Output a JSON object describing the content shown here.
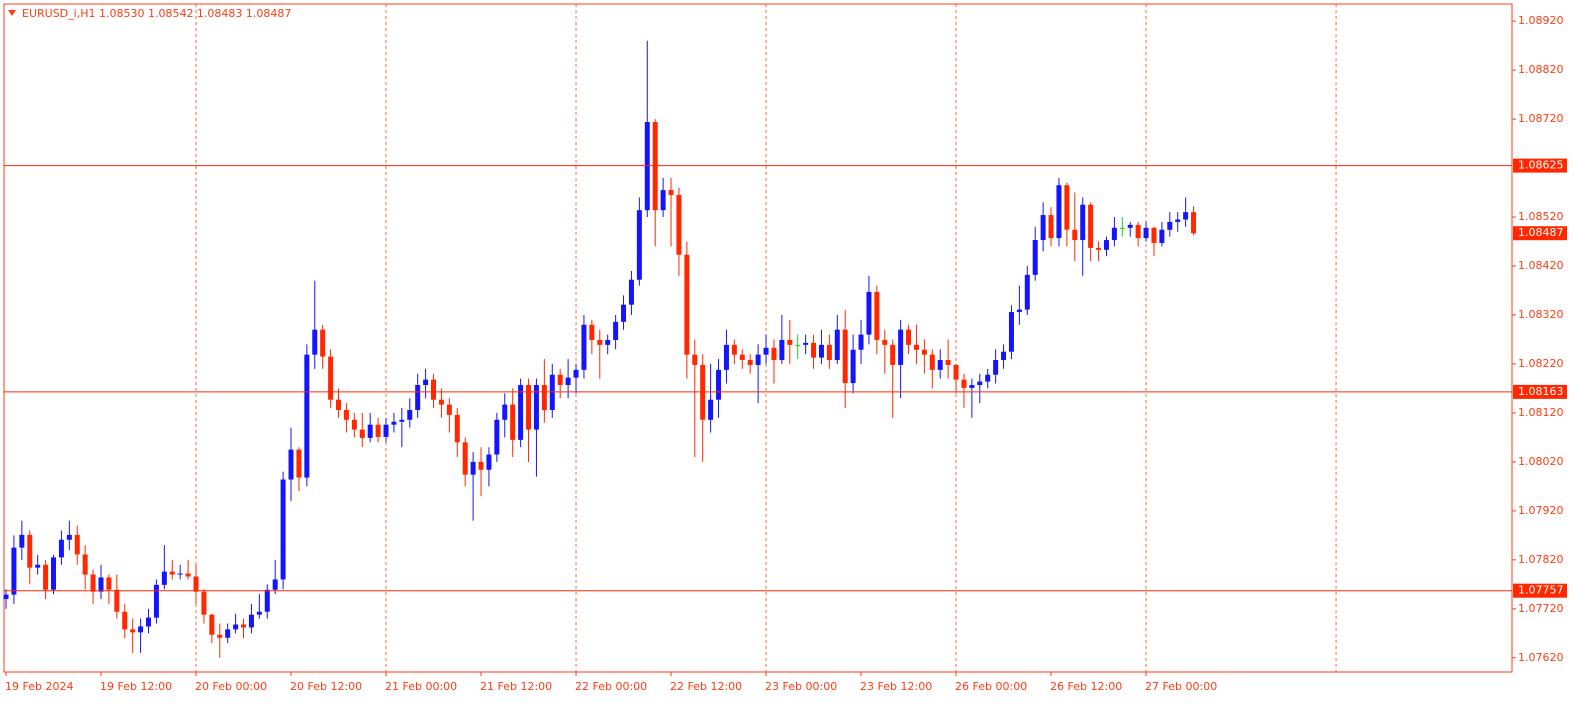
{
  "chart_data": {
    "type": "candlestick",
    "title": "EURUSD_i,H1  1.08530 1.08542 1.08483 1.08487",
    "up_color": "#1414ff",
    "down_color": "#ff2800",
    "doji_color": "#22cc22",
    "axis_color": "#ff3c14",
    "grid_color": "#ff6a32",
    "grid": true,
    "categories": [
      "19 Feb 2024",
      null,
      null,
      null,
      null,
      null,
      null,
      null,
      null,
      null,
      null,
      null,
      "19 Feb 12:00",
      null,
      null,
      null,
      null,
      null,
      null,
      null,
      null,
      null,
      null,
      null,
      "20 Feb 00:00",
      null,
      null,
      null,
      null,
      null,
      null,
      null,
      null,
      null,
      null,
      null,
      "20 Feb 12:00",
      null,
      null,
      null,
      null,
      null,
      null,
      null,
      null,
      null,
      null,
      null,
      "21 Feb 00:00",
      null,
      null,
      null,
      null,
      null,
      null,
      null,
      null,
      null,
      null,
      null,
      "21 Feb 12:00",
      null,
      null,
      null,
      null,
      null,
      null,
      null,
      null,
      null,
      null,
      null,
      "22 Feb 00:00",
      null,
      null,
      null,
      null,
      null,
      null,
      null,
      null,
      null,
      null,
      null,
      "22 Feb 12:00",
      null,
      null,
      null,
      null,
      null,
      null,
      null,
      null,
      null,
      null,
      null,
      "23 Feb 00:00",
      null,
      null,
      null,
      null,
      null,
      null,
      null,
      null,
      null,
      null,
      null,
      "23 Feb 12:00",
      null,
      null,
      null,
      null,
      null,
      null,
      null,
      null,
      null,
      null,
      null,
      "26 Feb 00:00",
      null,
      null,
      null,
      null,
      null,
      null,
      null,
      null,
      null,
      null,
      null,
      "26 Feb 12:00",
      null,
      null,
      null,
      null,
      null,
      null,
      null,
      null,
      null,
      null,
      null,
      "27 Feb 00:00",
      null,
      null,
      null,
      null,
      null,
      null
    ],
    "open": [
      1.0774,
      1.07749,
      1.07845,
      1.07871,
      1.07804,
      1.0781,
      1.07759,
      1.07825,
      1.07861,
      1.07871,
      1.07831,
      1.0779,
      1.07755,
      1.07784,
      1.07759,
      1.07714,
      1.07678,
      1.07672,
      1.07684,
      1.07702,
      1.07769,
      1.07796,
      1.0779,
      1.07792,
      1.07786,
      1.07755,
      1.07708,
      1.07667,
      1.07661,
      1.07678,
      1.07688,
      1.07682,
      1.07708,
      1.07714,
      1.07759,
      1.0778,
      1.07984,
      1.08045,
      1.07988,
      1.08239,
      1.0829,
      1.08235,
      1.08147,
      1.08126,
      1.08106,
      1.08086,
      1.08069,
      1.08096,
      1.08071,
      1.08096,
      1.08102,
      1.08106,
      1.08126,
      1.08177,
      1.08188,
      1.08147,
      1.08137,
      1.08116,
      1.0806,
      1.07994,
      1.0802,
      1.08004,
      1.08035,
      1.08106,
      1.08137,
      1.08065,
      1.08177,
      1.08086,
      1.08177,
      1.08126,
      1.08198,
      1.08177,
      1.08192,
      1.08208,
      1.083,
      1.08269,
      1.08259,
      1.08269,
      1.08306,
      1.08341,
      1.08392,
      1.08534,
      1.08714,
      1.08534,
      1.08575,
      1.08565,
      1.08443,
      1.08239,
      1.08218,
      1.08106,
      1.08147,
      1.08208,
      1.08259,
      1.08239,
      1.08228,
      1.08218,
      1.08239,
      1.08253,
      1.08228,
      1.08269,
      1.08259,
      1.08259,
      1.08263,
      1.08233,
      1.08259,
      1.08228,
      1.0829,
      1.08181,
      1.08249,
      1.0828,
      1.08367,
      1.08269,
      1.08259,
      1.08218,
      1.0829,
      1.08259,
      1.08249,
      1.08239,
      1.08208,
      1.08228,
      1.08218,
      1.08188,
      1.08171,
      1.08177,
      1.08184,
      1.08198,
      1.08228,
      1.08245,
      1.08326,
      1.08331,
      1.08402,
      1.08473,
      1.08524,
      1.08477,
      1.08585,
      1.08494,
      1.08473,
      1.08545,
      1.08457,
      1.08453,
      1.08473,
      1.08498,
      1.08498,
      1.08504,
      1.08477,
      1.08498,
      1.08467,
      1.08494,
      1.0851,
      1.08515,
      1.0853
    ],
    "high": [
      1.0776,
      1.0787,
      1.079,
      1.0788,
      1.0783,
      1.0782,
      1.0783,
      1.0788,
      1.079,
      1.0789,
      1.0785,
      1.078,
      1.0781,
      1.0779,
      1.0779,
      1.0773,
      1.077,
      1.077,
      1.0772,
      1.0778,
      1.0785,
      1.0782,
      1.0781,
      1.0782,
      1.0781,
      1.0776,
      1.0771,
      1.0769,
      1.0769,
      1.0771,
      1.077,
      1.0773,
      1.0775,
      1.0777,
      1.0782,
      1.08,
      1.0809,
      1.0805,
      1.0826,
      1.0839,
      1.083,
      1.0825,
      1.0817,
      1.0814,
      1.0812,
      1.0812,
      1.0812,
      1.0811,
      1.0811,
      1.0812,
      1.0813,
      1.0815,
      1.082,
      1.0821,
      1.082,
      1.0817,
      1.0815,
      1.0813,
      1.0807,
      1.0804,
      1.0805,
      1.0805,
      1.0812,
      1.0816,
      1.0817,
      1.0819,
      1.0819,
      1.0819,
      1.0823,
      1.0822,
      1.0821,
      1.0823,
      1.0822,
      1.0832,
      1.0831,
      1.0829,
      1.0828,
      1.0832,
      1.0836,
      1.0841,
      1.0856,
      1.0888,
      1.0872,
      1.086,
      1.086,
      1.0858,
      1.0847,
      1.0827,
      1.0824,
      1.0822,
      1.0823,
      1.0829,
      1.0827,
      1.0825,
      1.0824,
      1.0826,
      1.0828,
      1.0827,
      1.0832,
      1.0831,
      1.0828,
      1.0828,
      1.0828,
      1.0829,
      1.0828,
      1.0832,
      1.0833,
      1.0828,
      1.0831,
      1.084,
      1.0838,
      1.0829,
      1.0827,
      1.0831,
      1.083,
      1.083,
      1.0827,
      1.0825,
      1.0825,
      1.0827,
      1.0822,
      1.082,
      1.0819,
      1.082,
      1.0821,
      1.0825,
      1.0826,
      1.0834,
      1.0838,
      1.0842,
      1.085,
      1.0855,
      1.0854,
      1.086,
      1.0859,
      1.0857,
      1.0856,
      1.0855,
      1.0847,
      1.0848,
      1.0852,
      1.0852,
      1.0851,
      1.0851,
      1.0851,
      1.085,
      1.0851,
      1.0853,
      1.0853,
      1.0856,
      1.08542
    ],
    "low": [
      1.0772,
      1.0773,
      1.0782,
      1.0777,
      1.0779,
      1.0774,
      1.0775,
      1.0781,
      1.0784,
      1.0781,
      1.0776,
      1.0773,
      1.0774,
      1.0773,
      1.077,
      1.0766,
      1.0763,
      1.0763,
      1.0767,
      1.0769,
      1.0776,
      1.0778,
      1.0778,
      1.0778,
      1.0773,
      1.0769,
      1.0765,
      1.0762,
      1.0765,
      1.0767,
      1.0766,
      1.0767,
      1.077,
      1.077,
      1.0775,
      1.0776,
      1.0794,
      1.0796,
      1.0797,
      1.0821,
      1.0821,
      1.0813,
      1.0811,
      1.0808,
      1.0807,
      1.0805,
      1.0806,
      1.0806,
      1.0806,
      1.0808,
      1.0805,
      1.0809,
      1.0811,
      1.0815,
      1.0813,
      1.0811,
      1.0808,
      1.0803,
      1.0797,
      1.079,
      1.0795,
      1.0797,
      1.0802,
      1.0807,
      1.0803,
      1.0805,
      1.0802,
      1.0799,
      1.081,
      1.0811,
      1.0815,
      1.0815,
      1.0816,
      1.0819,
      1.0824,
      1.0819,
      1.0824,
      1.0825,
      1.0829,
      1.0832,
      1.0838,
      1.0852,
      1.0846,
      1.0852,
      1.0846,
      1.084,
      1.0819,
      1.0803,
      1.0802,
      1.0808,
      1.0811,
      1.0818,
      1.0822,
      1.0821,
      1.082,
      1.0814,
      1.0822,
      1.0818,
      1.0822,
      1.0822,
      1.0823,
      1.0824,
      1.0821,
      1.0822,
      1.0821,
      1.0822,
      1.0813,
      1.0816,
      1.0822,
      1.0826,
      1.0824,
      1.082,
      1.0811,
      1.0815,
      1.0824,
      1.0822,
      1.082,
      1.0817,
      1.0819,
      1.0819,
      1.0816,
      1.0813,
      1.0811,
      1.0814,
      1.0817,
      1.0818,
      1.0821,
      1.0823,
      1.083,
      1.0832,
      1.0839,
      1.0845,
      1.0846,
      1.0846,
      1.0846,
      1.0843,
      1.084,
      1.0843,
      1.0843,
      1.0844,
      1.0846,
      1.0848,
      1.0848,
      1.0846,
      1.0847,
      1.0844,
      1.0846,
      1.0848,
      1.0849,
      1.085,
      1.08483
    ],
    "close": [
      1.07749,
      1.07845,
      1.07871,
      1.07804,
      1.0781,
      1.07759,
      1.07825,
      1.07861,
      1.07871,
      1.07831,
      1.0779,
      1.07755,
      1.07784,
      1.07759,
      1.07714,
      1.07678,
      1.07672,
      1.07684,
      1.07702,
      1.07769,
      1.07796,
      1.0779,
      1.07792,
      1.07786,
      1.07755,
      1.07708,
      1.07667,
      1.07661,
      1.07678,
      1.07688,
      1.07682,
      1.07708,
      1.07714,
      1.07759,
      1.0778,
      1.07984,
      1.08045,
      1.07988,
      1.08239,
      1.0829,
      1.08235,
      1.08147,
      1.08126,
      1.08106,
      1.08086,
      1.08069,
      1.08096,
      1.08071,
      1.08096,
      1.08102,
      1.08106,
      1.08126,
      1.08177,
      1.08188,
      1.08147,
      1.08137,
      1.08116,
      1.0806,
      1.07994,
      1.0802,
      1.08004,
      1.08035,
      1.08106,
      1.08137,
      1.08065,
      1.08177,
      1.08086,
      1.08177,
      1.08126,
      1.08198,
      1.08177,
      1.08192,
      1.08208,
      1.083,
      1.08269,
      1.08259,
      1.08269,
      1.08306,
      1.08341,
      1.08392,
      1.08534,
      1.08714,
      1.08534,
      1.08575,
      1.08565,
      1.08443,
      1.08239,
      1.08218,
      1.08106,
      1.08147,
      1.08208,
      1.08259,
      1.08239,
      1.08228,
      1.08218,
      1.08239,
      1.08253,
      1.08228,
      1.08269,
      1.08259,
      1.08259,
      1.08263,
      1.08233,
      1.08259,
      1.08228,
      1.0829,
      1.08181,
      1.08249,
      1.0828,
      1.08367,
      1.08269,
      1.08259,
      1.08218,
      1.0829,
      1.08259,
      1.08249,
      1.08239,
      1.08208,
      1.08228,
      1.08218,
      1.08188,
      1.08171,
      1.08177,
      1.08184,
      1.08198,
      1.08228,
      1.08245,
      1.08326,
      1.08331,
      1.08402,
      1.08473,
      1.08524,
      1.08477,
      1.08585,
      1.08494,
      1.08473,
      1.08545,
      1.08457,
      1.08453,
      1.08473,
      1.08498,
      1.08498,
      1.08504,
      1.08477,
      1.08498,
      1.08467,
      1.08494,
      1.0851,
      1.08515,
      1.0853,
      1.08487
    ],
    "ylim": [
      1.07591,
      1.08955
    ],
    "yticks": [
      {
        "value": 1.0892,
        "label": "1.08920"
      },
      {
        "value": 1.0882,
        "label": "1.08820"
      },
      {
        "value": 1.0872,
        "label": "1.08720"
      },
      {
        "value": 1.0852,
        "label": "1.08520"
      },
      {
        "value": 1.0842,
        "label": "1.08420"
      },
      {
        "value": 1.0832,
        "label": "1.08320"
      },
      {
        "value": 1.0822,
        "label": "1.08220"
      },
      {
        "value": 1.0812,
        "label": "1.08120"
      },
      {
        "value": 1.0802,
        "label": "1.08020"
      },
      {
        "value": 1.0792,
        "label": "1.07920"
      },
      {
        "value": 1.0782,
        "label": "1.07820"
      },
      {
        "value": 1.0772,
        "label": "1.07720"
      },
      {
        "value": 1.0762,
        "label": "1.07620"
      }
    ],
    "hlines": [
      {
        "value": 1.08625,
        "label": "1.08625"
      },
      {
        "value": 1.08163,
        "label": "1.08163"
      },
      {
        "value": 1.07757,
        "label": "1.07757"
      }
    ],
    "current_price": {
      "value": 1.08487,
      "label": "1.08487"
    }
  }
}
